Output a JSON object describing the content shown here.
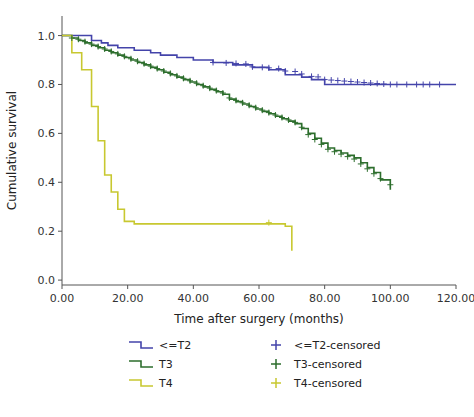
{
  "chart_data": {
    "type": "line",
    "xlabel": "Time after surgery (months)",
    "ylabel": "Cumulative survival",
    "xlim": [
      0,
      120
    ],
    "ylim": [
      -0.02,
      1.08
    ],
    "xticks": [
      {
        "value": 0,
        "label": "0.00"
      },
      {
        "value": 20,
        "label": "20.00"
      },
      {
        "value": 40,
        "label": "40.00"
      },
      {
        "value": 60,
        "label": "60.00"
      },
      {
        "value": 80,
        "label": "80.00"
      },
      {
        "value": 100,
        "label": "100.00"
      },
      {
        "value": 120,
        "label": "120.00"
      }
    ],
    "yticks": [
      {
        "value": 0.0,
        "label": "0.0"
      },
      0.2,
      0.4,
      0.6,
      0.8,
      {
        "value": 1.0,
        "label": "1.0"
      }
    ],
    "legend": "bottom",
    "series": [
      {
        "name": "<=T2",
        "type": "step",
        "color": "#4444aa",
        "x": [
          0,
          6,
          9,
          12,
          14,
          17,
          22,
          27,
          30,
          35,
          40,
          46,
          52,
          58,
          63,
          68,
          73,
          76,
          80,
          120
        ],
        "values": [
          1.0,
          1.0,
          0.98,
          0.97,
          0.96,
          0.95,
          0.94,
          0.93,
          0.92,
          0.91,
          0.9,
          0.89,
          0.88,
          0.87,
          0.86,
          0.84,
          0.83,
          0.82,
          0.8,
          0.8
        ]
      },
      {
        "name": "T3",
        "type": "step",
        "color": "#2d6e2d",
        "x": [
          0,
          3,
          5,
          7,
          9,
          11,
          13,
          15,
          17,
          19,
          21,
          23,
          25,
          27,
          29,
          31,
          33,
          35,
          37,
          39,
          41,
          43,
          45,
          47,
          49,
          51,
          53,
          55,
          57,
          59,
          61,
          63,
          65,
          67,
          69,
          71,
          73,
          75,
          77,
          79,
          81,
          83,
          85,
          87,
          89,
          91,
          93,
          95,
          97,
          100
        ],
        "values": [
          1.0,
          0.99,
          0.98,
          0.97,
          0.96,
          0.95,
          0.94,
          0.93,
          0.92,
          0.91,
          0.9,
          0.89,
          0.88,
          0.87,
          0.86,
          0.85,
          0.84,
          0.83,
          0.82,
          0.81,
          0.8,
          0.79,
          0.78,
          0.77,
          0.76,
          0.74,
          0.73,
          0.72,
          0.71,
          0.7,
          0.69,
          0.68,
          0.67,
          0.66,
          0.65,
          0.64,
          0.62,
          0.6,
          0.58,
          0.56,
          0.54,
          0.53,
          0.52,
          0.51,
          0.5,
          0.48,
          0.46,
          0.44,
          0.41,
          0.37
        ]
      },
      {
        "name": "T4",
        "type": "step",
        "color": "#c8c830",
        "x": [
          0,
          3,
          6,
          9,
          11,
          13,
          15,
          17,
          19,
          22,
          60,
          68,
          70
        ],
        "values": [
          1.0,
          0.93,
          0.86,
          0.71,
          0.57,
          0.43,
          0.36,
          0.29,
          0.24,
          0.23,
          0.23,
          0.22,
          0.12
        ]
      },
      {
        "name": "<=T2-censored",
        "type": "scatter",
        "marker": "plus",
        "color": "#4444aa",
        "x": [
          46,
          50,
          53,
          56,
          58,
          61,
          63,
          66,
          68,
          71,
          73,
          76,
          78,
          80,
          82,
          84,
          86,
          88,
          90,
          92,
          94,
          96,
          98,
          100,
          102,
          105,
          108,
          110,
          112,
          115
        ],
        "values": [
          0.89,
          0.888,
          0.886,
          0.884,
          0.872,
          0.87,
          0.868,
          0.865,
          0.855,
          0.853,
          0.843,
          0.833,
          0.831,
          0.82,
          0.818,
          0.816,
          0.814,
          0.812,
          0.81,
          0.808,
          0.806,
          0.804,
          0.802,
          0.8,
          0.8,
          0.8,
          0.8,
          0.8,
          0.8,
          0.8
        ]
      },
      {
        "name": "T3-censored",
        "type": "scatter",
        "marker": "plus",
        "color": "#2d6e2d",
        "x": [
          3,
          5,
          7,
          9,
          11,
          13,
          15,
          17,
          19,
          21,
          23,
          25,
          27,
          29,
          31,
          33,
          35,
          37,
          39,
          41,
          43,
          45,
          47,
          49,
          51,
          53,
          55,
          57,
          59,
          61,
          63,
          65,
          67,
          69,
          71,
          73,
          75,
          77,
          79,
          81,
          83,
          85,
          87,
          89,
          91,
          93,
          95,
          97,
          100
        ],
        "values": [
          0.99,
          0.985,
          0.975,
          0.965,
          0.955,
          0.945,
          0.935,
          0.925,
          0.915,
          0.905,
          0.895,
          0.885,
          0.875,
          0.865,
          0.855,
          0.845,
          0.835,
          0.825,
          0.815,
          0.805,
          0.795,
          0.785,
          0.775,
          0.765,
          0.745,
          0.735,
          0.725,
          0.715,
          0.705,
          0.695,
          0.685,
          0.675,
          0.665,
          0.655,
          0.645,
          0.625,
          0.595,
          0.575,
          0.555,
          0.535,
          0.525,
          0.515,
          0.505,
          0.495,
          0.475,
          0.455,
          0.435,
          0.415,
          0.39
        ]
      },
      {
        "name": "T4-censored",
        "type": "scatter",
        "marker": "plus",
        "color": "#c8c830",
        "x": [
          63
        ],
        "values": [
          0.235
        ]
      }
    ]
  }
}
